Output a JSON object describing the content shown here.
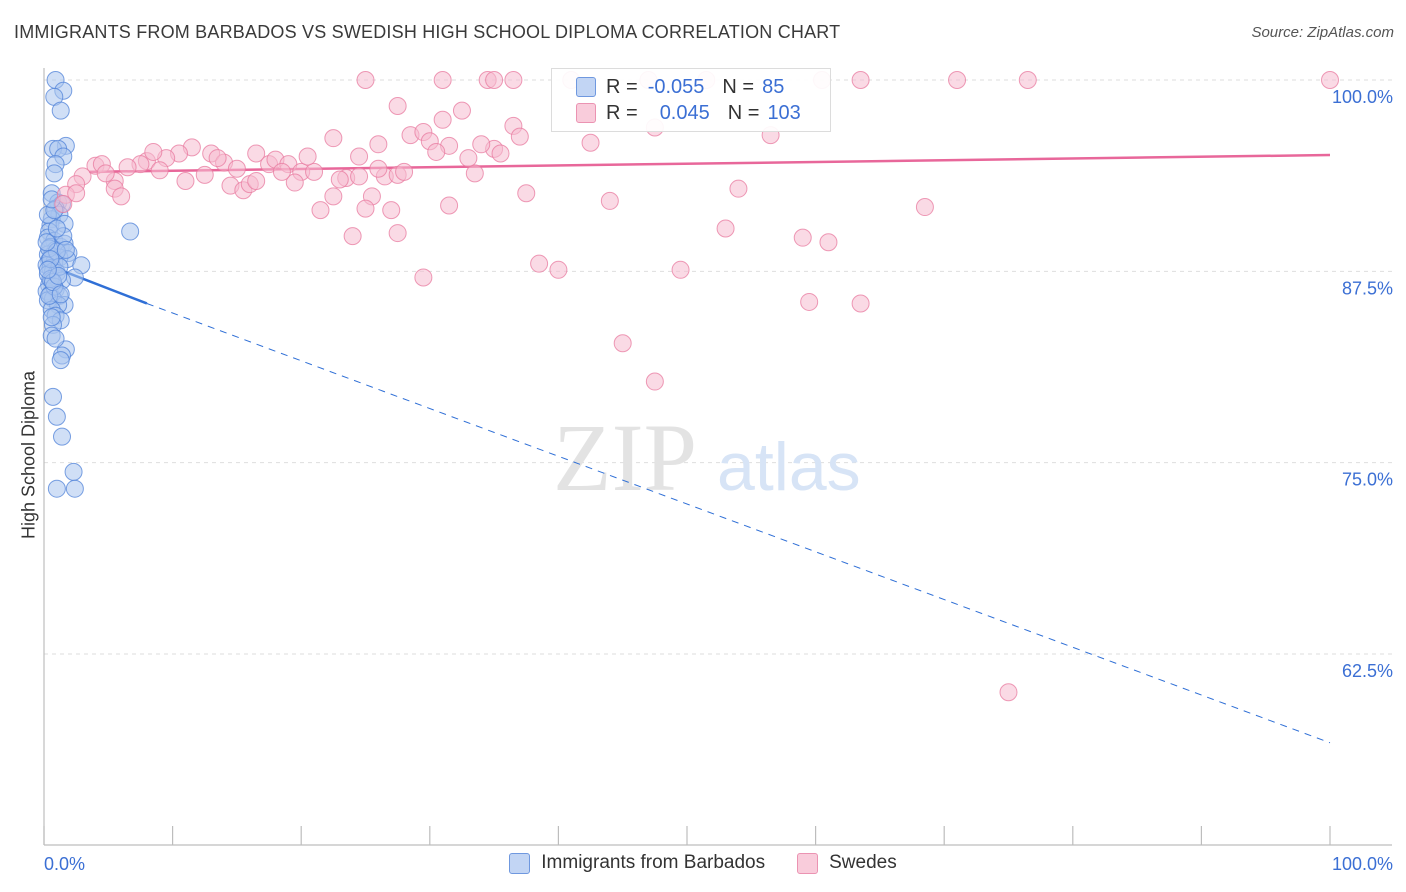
{
  "title": "IMMIGRANTS FROM BARBADOS VS SWEDISH HIGH SCHOOL DIPLOMA CORRELATION CHART",
  "source": "Source: ZipAtlas.com",
  "watermark": {
    "zip": "ZIP",
    "atlas": "atlas"
  },
  "legend": {
    "r_label": "R =",
    "n_label": "N =",
    "rows": [
      {
        "r": "-0.055",
        "n": "85"
      },
      {
        "r": "0.045",
        "n": "103"
      }
    ]
  },
  "bottom_legend": [
    "Immigrants from Barbados",
    "Swedes"
  ],
  "colors": {
    "blue_fill": "#a9c4ef",
    "blue_stroke": "#4f82d8",
    "blue_line": "#2f6fd6",
    "pink_fill": "#f6bcd0",
    "pink_stroke": "#e8799f",
    "pink_line": "#e8679a",
    "tick_label": "#3b6fd4",
    "grid": "#dedede"
  },
  "chart_data": {
    "type": "scatter",
    "title": "IMMIGRANTS FROM BARBADOS VS SWEDISH HIGH SCHOOL DIPLOMA CORRELATION CHART",
    "xlabel": "",
    "ylabel": "High School Diploma",
    "xlim": [
      0,
      100
    ],
    "ylim": [
      52.5,
      102
    ],
    "x_tick_labels": [
      "0.0%",
      "100.0%"
    ],
    "y_ticks": [
      62.5,
      75.0,
      87.5,
      100.0
    ],
    "y_tick_labels": [
      "62.5%",
      "75.0%",
      "87.5%",
      "100.0%"
    ],
    "grid": "horizontal dashed",
    "legend_position": "top-center",
    "series": [
      {
        "name": "Immigrants from Barbados",
        "r": -0.055,
        "n": 85,
        "trend": {
          "solid": [
            [
              0,
              88.0
            ],
            [
              8,
              85.4
            ]
          ],
          "dashed": [
            [
              8,
              85.4
            ],
            [
              100,
              56.7
            ]
          ]
        },
        "points": [
          [
            0.9,
            100.0
          ],
          [
            1.5,
            99.3
          ],
          [
            0.8,
            98.9
          ],
          [
            1.3,
            98.0
          ],
          [
            1.7,
            95.7
          ],
          [
            0.7,
            95.5
          ],
          [
            1.1,
            95.5
          ],
          [
            1.5,
            95.0
          ],
          [
            0.9,
            94.5
          ],
          [
            0.8,
            93.9
          ],
          [
            0.6,
            92.6
          ],
          [
            1.1,
            92.0
          ],
          [
            1.4,
            91.9
          ],
          [
            0.9,
            91.6
          ],
          [
            1.2,
            91.2
          ],
          [
            0.6,
            90.9
          ],
          [
            0.5,
            90.5
          ],
          [
            1.6,
            90.6
          ],
          [
            0.4,
            90.1
          ],
          [
            0.3,
            89.7
          ],
          [
            0.8,
            89.5
          ],
          [
            1.3,
            89.1
          ],
          [
            1.6,
            89.3
          ],
          [
            0.5,
            89.1
          ],
          [
            0.9,
            88.9
          ],
          [
            1.9,
            88.7
          ],
          [
            0.3,
            88.6
          ],
          [
            0.6,
            88.5
          ],
          [
            1.2,
            88.4
          ],
          [
            0.4,
            88.2
          ],
          [
            0.8,
            88.1
          ],
          [
            1.8,
            88.3
          ],
          [
            2.9,
            87.9
          ],
          [
            0.2,
            87.9
          ],
          [
            0.5,
            87.7
          ],
          [
            0.7,
            87.5
          ],
          [
            1.0,
            87.4
          ],
          [
            0.3,
            87.3
          ],
          [
            2.4,
            87.1
          ],
          [
            0.6,
            86.9
          ],
          [
            1.4,
            86.9
          ],
          [
            0.4,
            86.6
          ],
          [
            0.9,
            86.3
          ],
          [
            0.2,
            86.2
          ],
          [
            0.5,
            86.0
          ],
          [
            1.2,
            85.9
          ],
          [
            0.7,
            85.7
          ],
          [
            0.3,
            85.6
          ],
          [
            1.6,
            85.3
          ],
          [
            1.1,
            85.3
          ],
          [
            0.6,
            85.0
          ],
          [
            0.9,
            84.6
          ],
          [
            1.3,
            84.3
          ],
          [
            0.7,
            84.0
          ],
          [
            0.6,
            83.3
          ],
          [
            1.7,
            82.4
          ],
          [
            1.4,
            82.0
          ],
          [
            1.3,
            81.7
          ],
          [
            0.7,
            79.3
          ],
          [
            1.0,
            78.0
          ],
          [
            1.4,
            76.7
          ],
          [
            2.3,
            74.4
          ],
          [
            1.0,
            73.3
          ],
          [
            2.4,
            73.3
          ],
          [
            6.7,
            90.1
          ],
          [
            0.4,
            89.0
          ],
          [
            1.0,
            88.8
          ],
          [
            0.5,
            87.0
          ],
          [
            0.8,
            86.5
          ],
          [
            1.5,
            89.8
          ],
          [
            0.3,
            91.2
          ],
          [
            1.2,
            87.8
          ],
          [
            0.6,
            84.5
          ],
          [
            0.9,
            83.1
          ],
          [
            0.4,
            85.9
          ],
          [
            1.7,
            88.9
          ],
          [
            0.2,
            89.4
          ],
          [
            1.0,
            90.3
          ],
          [
            0.5,
            88.3
          ],
          [
            0.7,
            86.8
          ],
          [
            1.1,
            87.2
          ],
          [
            0.3,
            87.6
          ],
          [
            0.8,
            91.5
          ],
          [
            1.3,
            86.0
          ],
          [
            0.6,
            92.2
          ]
        ]
      },
      {
        "name": "Swedes",
        "r": 0.045,
        "n": 103,
        "trend": {
          "solid": [
            [
              3.5,
              94.0
            ],
            [
              100,
              95.1
            ]
          ]
        },
        "points": [
          [
            25.0,
            100.0
          ],
          [
            31.0,
            100.0
          ],
          [
            34.5,
            100.0
          ],
          [
            35.0,
            100.0
          ],
          [
            36.5,
            100.0
          ],
          [
            41.0,
            100.0
          ],
          [
            47.0,
            100.0
          ],
          [
            51.5,
            100.0
          ],
          [
            60.5,
            100.0
          ],
          [
            63.5,
            100.0
          ],
          [
            71.0,
            100.0
          ],
          [
            76.5,
            100.0
          ],
          [
            100.0,
            100.0
          ],
          [
            27.5,
            98.3
          ],
          [
            32.5,
            98.0
          ],
          [
            36.5,
            97.0
          ],
          [
            31.0,
            97.4
          ],
          [
            28.5,
            96.4
          ],
          [
            29.5,
            96.6
          ],
          [
            30.0,
            96.0
          ],
          [
            22.5,
            96.2
          ],
          [
            26.0,
            95.8
          ],
          [
            37.0,
            96.3
          ],
          [
            42.5,
            95.9
          ],
          [
            47.5,
            96.9
          ],
          [
            56.5,
            96.4
          ],
          [
            35.0,
            95.5
          ],
          [
            11.5,
            95.6
          ],
          [
            10.5,
            95.2
          ],
          [
            13.0,
            95.2
          ],
          [
            16.5,
            95.2
          ],
          [
            9.5,
            94.9
          ],
          [
            8.0,
            94.7
          ],
          [
            7.5,
            94.5
          ],
          [
            4.0,
            94.4
          ],
          [
            4.5,
            94.5
          ],
          [
            14.0,
            94.6
          ],
          [
            15.0,
            94.2
          ],
          [
            17.5,
            94.5
          ],
          [
            18.0,
            94.8
          ],
          [
            19.0,
            94.5
          ],
          [
            20.0,
            94.0
          ],
          [
            21.0,
            94.0
          ],
          [
            6.5,
            94.3
          ],
          [
            24.5,
            95.0
          ],
          [
            20.5,
            95.0
          ],
          [
            3.0,
            93.7
          ],
          [
            2.5,
            93.2
          ],
          [
            5.5,
            93.4
          ],
          [
            11.0,
            93.4
          ],
          [
            14.5,
            93.1
          ],
          [
            15.5,
            92.8
          ],
          [
            16.0,
            93.2
          ],
          [
            16.5,
            93.4
          ],
          [
            23.5,
            93.6
          ],
          [
            24.5,
            93.7
          ],
          [
            26.5,
            93.7
          ],
          [
            27.5,
            93.8
          ],
          [
            33.5,
            93.9
          ],
          [
            5.5,
            92.9
          ],
          [
            1.7,
            92.5
          ],
          [
            2.5,
            92.6
          ],
          [
            25.5,
            92.4
          ],
          [
            22.5,
            92.4
          ],
          [
            31.5,
            95.7
          ],
          [
            34.0,
            95.8
          ],
          [
            6.0,
            92.4
          ],
          [
            21.5,
            91.5
          ],
          [
            25.0,
            91.6
          ],
          [
            31.5,
            91.8
          ],
          [
            37.5,
            92.6
          ],
          [
            27.0,
            91.5
          ],
          [
            1.5,
            91.9
          ],
          [
            54.0,
            92.9
          ],
          [
            27.5,
            90.0
          ],
          [
            24.0,
            89.8
          ],
          [
            44.0,
            92.1
          ],
          [
            53.0,
            90.3
          ],
          [
            68.5,
            91.7
          ],
          [
            59.0,
            89.7
          ],
          [
            61.0,
            89.4
          ],
          [
            38.5,
            88.0
          ],
          [
            40.0,
            87.6
          ],
          [
            29.5,
            87.1
          ],
          [
            49.5,
            87.6
          ],
          [
            59.5,
            85.5
          ],
          [
            63.5,
            85.4
          ],
          [
            45.0,
            82.8
          ],
          [
            47.5,
            80.3
          ],
          [
            75.0,
            60.0
          ],
          [
            23.0,
            93.5
          ],
          [
            12.5,
            93.8
          ],
          [
            19.5,
            93.3
          ],
          [
            28.0,
            94.0
          ],
          [
            9.0,
            94.1
          ],
          [
            4.8,
            93.9
          ],
          [
            30.5,
            95.3
          ],
          [
            35.5,
            95.2
          ],
          [
            8.5,
            95.3
          ],
          [
            13.5,
            94.9
          ],
          [
            18.5,
            94.0
          ],
          [
            26.0,
            94.2
          ],
          [
            33.0,
            94.9
          ]
        ]
      }
    ]
  }
}
